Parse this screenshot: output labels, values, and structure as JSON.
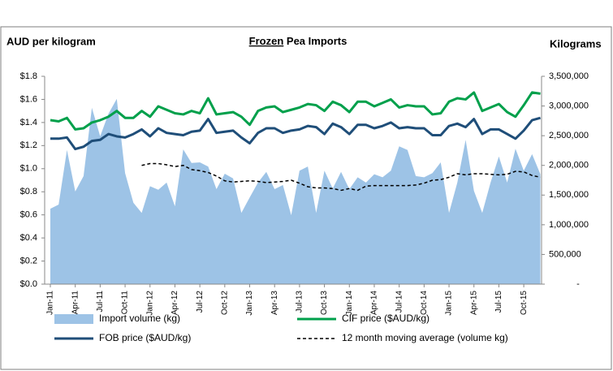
{
  "chart_data": {
    "type": "combo",
    "title": "Frozen Pea Imports",
    "y_label": "AUD per kilogram",
    "y2_label": "Kilograms",
    "categories": [
      "Jan-11",
      null,
      null,
      "Apr-11",
      null,
      null,
      "Jul-11",
      null,
      null,
      "Oct-11",
      null,
      null,
      "Jan-12",
      null,
      null,
      "Apr-12",
      null,
      null,
      "Jul-12",
      null,
      null,
      "Oct-12",
      null,
      null,
      "Jan-13",
      null,
      null,
      "Apr-13",
      null,
      null,
      "Jul-13",
      null,
      null,
      "Oct-13",
      null,
      null,
      "Jan-14",
      null,
      null,
      "Apr-14",
      null,
      null,
      "Jul-14",
      null,
      null,
      "Oct-14",
      null,
      null,
      "Jan-15",
      null,
      null,
      "Apr-15",
      null,
      null,
      "Jul-15",
      null,
      null,
      "Oct-15",
      null,
      null
    ],
    "ylim": [
      0,
      1.8
    ],
    "yticks": [
      {
        "value": 0,
        "label": "$0.0"
      },
      {
        "value": 0.2,
        "label": "$0.2"
      },
      {
        "value": 0.4,
        "label": "$0.4"
      },
      {
        "value": 0.6,
        "label": "$0.6"
      },
      {
        "value": 0.8,
        "label": "$0.8"
      },
      {
        "value": 1.0,
        "label": "$1.0"
      },
      {
        "value": 1.2,
        "label": "$1.2"
      },
      {
        "value": 1.4,
        "label": "$1.4"
      },
      {
        "value": 1.6,
        "label": "$1.6"
      },
      {
        "value": 1.8,
        "label": "$1.8"
      }
    ],
    "y2lim": [
      0,
      3500000
    ],
    "y2ticks": [
      {
        "value": 0,
        "label": "-"
      },
      {
        "value": 500000,
        "label": "500,000"
      },
      {
        "value": 1000000,
        "label": "1,000,000"
      },
      {
        "value": 1500000,
        "label": "1,500,000"
      },
      {
        "value": 2000000,
        "label": "2,000,000"
      },
      {
        "value": 2500000,
        "label": "2,500,000"
      },
      {
        "value": 3000000,
        "label": "3,000,000"
      },
      {
        "value": 3500000,
        "label": "3,500,000"
      }
    ],
    "series": [
      {
        "name": "Import volume (kg)",
        "style": "area",
        "axis": "y2",
        "color": "#9dc3e6",
        "values": [
          1270000,
          1340000,
          2260000,
          1560000,
          1820000,
          2970000,
          2490000,
          2870000,
          3120000,
          1870000,
          1370000,
          1200000,
          1650000,
          1590000,
          1710000,
          1310000,
          2270000,
          2040000,
          2050000,
          1980000,
          1600000,
          1860000,
          1780000,
          1200000,
          1460000,
          1710000,
          1890000,
          1600000,
          1670000,
          1160000,
          1910000,
          1980000,
          1200000,
          1910000,
          1610000,
          1890000,
          1600000,
          1800000,
          1710000,
          1850000,
          1800000,
          1910000,
          2320000,
          2260000,
          1820000,
          1800000,
          1870000,
          2050000,
          1200000,
          1710000,
          2430000,
          1570000,
          1200000,
          1710000,
          2150000,
          1710000,
          2280000,
          1910000,
          2190000,
          1850000
        ]
      },
      {
        "name": "CIF price ($AUD/kg)",
        "style": "line",
        "color": "#00a04b",
        "values": [
          1.42,
          1.41,
          1.44,
          1.34,
          1.35,
          1.4,
          1.42,
          1.45,
          1.5,
          1.44,
          1.44,
          1.5,
          1.45,
          1.54,
          1.51,
          1.48,
          1.47,
          1.5,
          1.48,
          1.61,
          1.47,
          1.48,
          1.49,
          1.45,
          1.38,
          1.5,
          1.53,
          1.54,
          1.49,
          1.51,
          1.53,
          1.56,
          1.55,
          1.5,
          1.58,
          1.55,
          1.49,
          1.58,
          1.58,
          1.54,
          1.57,
          1.6,
          1.53,
          1.55,
          1.54,
          1.54,
          1.47,
          1.48,
          1.58,
          1.61,
          1.6,
          1.66,
          1.5,
          1.53,
          1.56,
          1.49,
          1.45,
          1.55,
          1.66,
          1.65
        ]
      },
      {
        "name": "FOB price ($AUD/kg)",
        "style": "line",
        "color": "#1f4e79",
        "values": [
          1.26,
          1.26,
          1.27,
          1.17,
          1.19,
          1.24,
          1.25,
          1.3,
          1.28,
          1.27,
          1.3,
          1.34,
          1.28,
          1.35,
          1.31,
          1.3,
          1.29,
          1.32,
          1.33,
          1.43,
          1.31,
          1.32,
          1.33,
          1.27,
          1.22,
          1.31,
          1.35,
          1.35,
          1.31,
          1.33,
          1.34,
          1.37,
          1.36,
          1.3,
          1.39,
          1.36,
          1.3,
          1.38,
          1.38,
          1.35,
          1.37,
          1.4,
          1.35,
          1.36,
          1.35,
          1.35,
          1.29,
          1.29,
          1.37,
          1.39,
          1.36,
          1.43,
          1.3,
          1.34,
          1.34,
          1.3,
          1.26,
          1.33,
          1.42,
          1.44
        ]
      },
      {
        "name": "12 month moving average (volume kg)",
        "style": "dashed",
        "axis": "y2",
        "color": "#000000",
        "values": [
          null,
          null,
          null,
          null,
          null,
          null,
          null,
          null,
          null,
          null,
          null,
          2000000,
          2030000,
          2030000,
          2010000,
          1980000,
          2000000,
          1930000,
          1910000,
          1880000,
          1820000,
          1740000,
          1720000,
          1730000,
          1740000,
          1730000,
          1710000,
          1720000,
          1730000,
          1750000,
          1700000,
          1640000,
          1620000,
          1620000,
          1610000,
          1580000,
          1610000,
          1580000,
          1650000,
          1660000,
          1660000,
          1660000,
          1660000,
          1660000,
          1670000,
          1700000,
          1750000,
          1760000,
          1800000,
          1860000,
          1840000,
          1860000,
          1860000,
          1850000,
          1840000,
          1850000,
          1900000,
          1890000,
          1830000,
          1800000
        ]
      }
    ]
  }
}
